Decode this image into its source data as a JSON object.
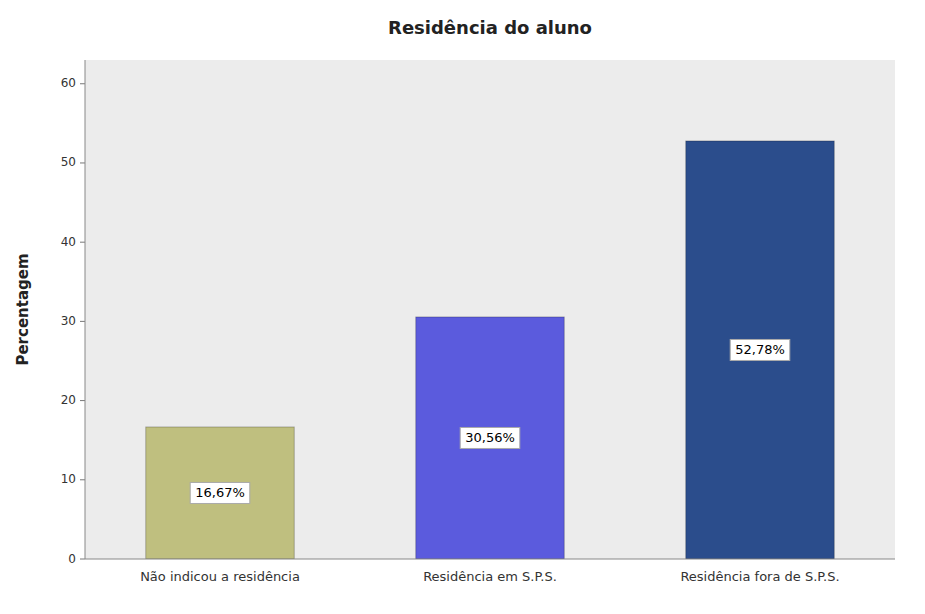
{
  "chart_data": {
    "type": "bar",
    "title": "Residência do aluno",
    "categories": [
      "Não indicou a residência",
      "Residência em S.P.S.",
      "Residência fora de S.P.S."
    ],
    "values": [
      16.67,
      30.56,
      52.78
    ],
    "value_labels": [
      "16,67%",
      "30,56%",
      "52,78%"
    ],
    "data_labels": true,
    "colors": [
      "#bfbf7f",
      "#5b5bdd",
      "#2b4d8c"
    ],
    "ylabel": "Percentagem",
    "ylim": [
      0,
      63
    ],
    "yticks": [
      0,
      10,
      20,
      30,
      40,
      50,
      60
    ],
    "grid": false
  }
}
